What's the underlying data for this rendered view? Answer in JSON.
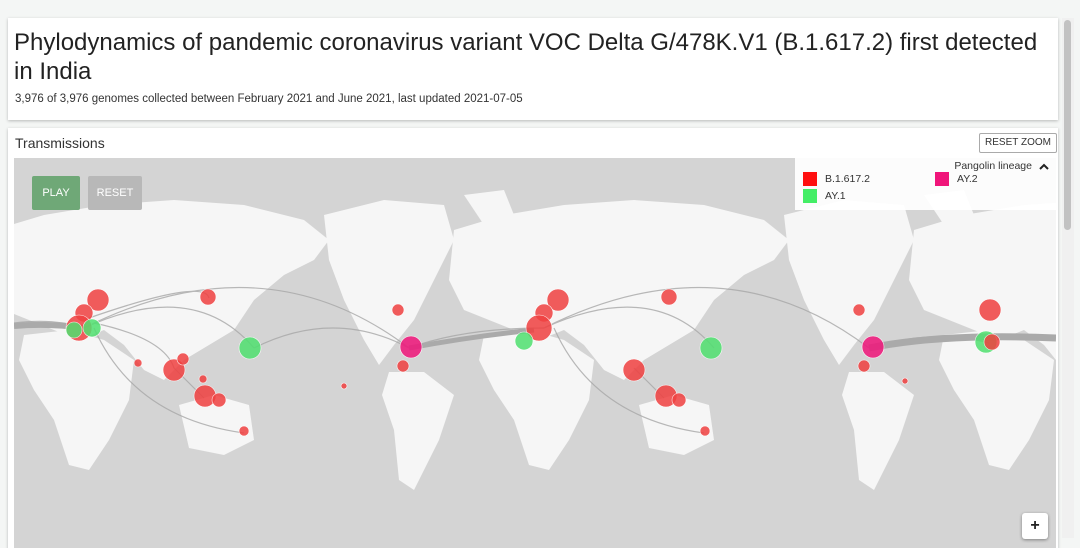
{
  "header": {
    "title": "Phylodynamics of pandemic coronavirus variant VOC Delta G/478K.V1 (B.1.617.2) first detected in India",
    "subtitle": "3,976 of 3,976 genomes collected between February 2021 and June 2021, last updated 2021-07-05"
  },
  "map_panel": {
    "title": "Transmissions",
    "reset_zoom": "RESET ZOOM",
    "play": "PLAY",
    "reset": "RESET",
    "zoom_in": "+",
    "legend": {
      "title": "Pangolin lineage",
      "items": [
        {
          "label": "B.1.617.2",
          "color": "#ff1010"
        },
        {
          "label": "AY.2",
          "color": "#f0157a"
        },
        {
          "label": "AY.1",
          "color": "#44ee66"
        }
      ]
    }
  }
}
